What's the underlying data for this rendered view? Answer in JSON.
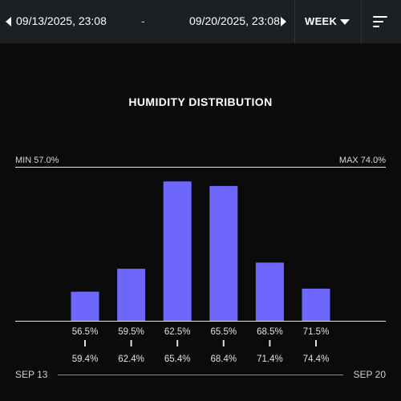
{
  "header": {
    "start_date": "09/13/2025, 23:08",
    "separator": "-",
    "end_date": "09/20/2025, 23:08",
    "period": "WEEK",
    "icons": [
      "chevron-left-icon",
      "chevron-right-icon",
      "caret-down-icon",
      "sort-icon"
    ]
  },
  "chart": {
    "min_label": "MIN 57.0%",
    "max_label": "MAX 74.0%",
    "footer_start": "SEP 13",
    "footer_end": "SEP 20"
  },
  "chart_data": {
    "type": "bar",
    "title": "HUMIDITY DISTRIBUTION",
    "bar_color": "#6d67fb",
    "categories": [
      {
        "low": "56.5%",
        "high": "59.4%"
      },
      {
        "low": "59.5%",
        "high": "62.4%"
      },
      {
        "low": "62.5%",
        "high": "65.4%"
      },
      {
        "low": "65.5%",
        "high": "68.4%"
      },
      {
        "low": "68.5%",
        "high": "71.4%"
      },
      {
        "low": "71.5%",
        "high": "74.4%"
      }
    ],
    "values": [
      0.19,
      0.34,
      0.91,
      0.88,
      0.38,
      0.21
    ],
    "ylim": [
      0,
      1
    ]
  }
}
